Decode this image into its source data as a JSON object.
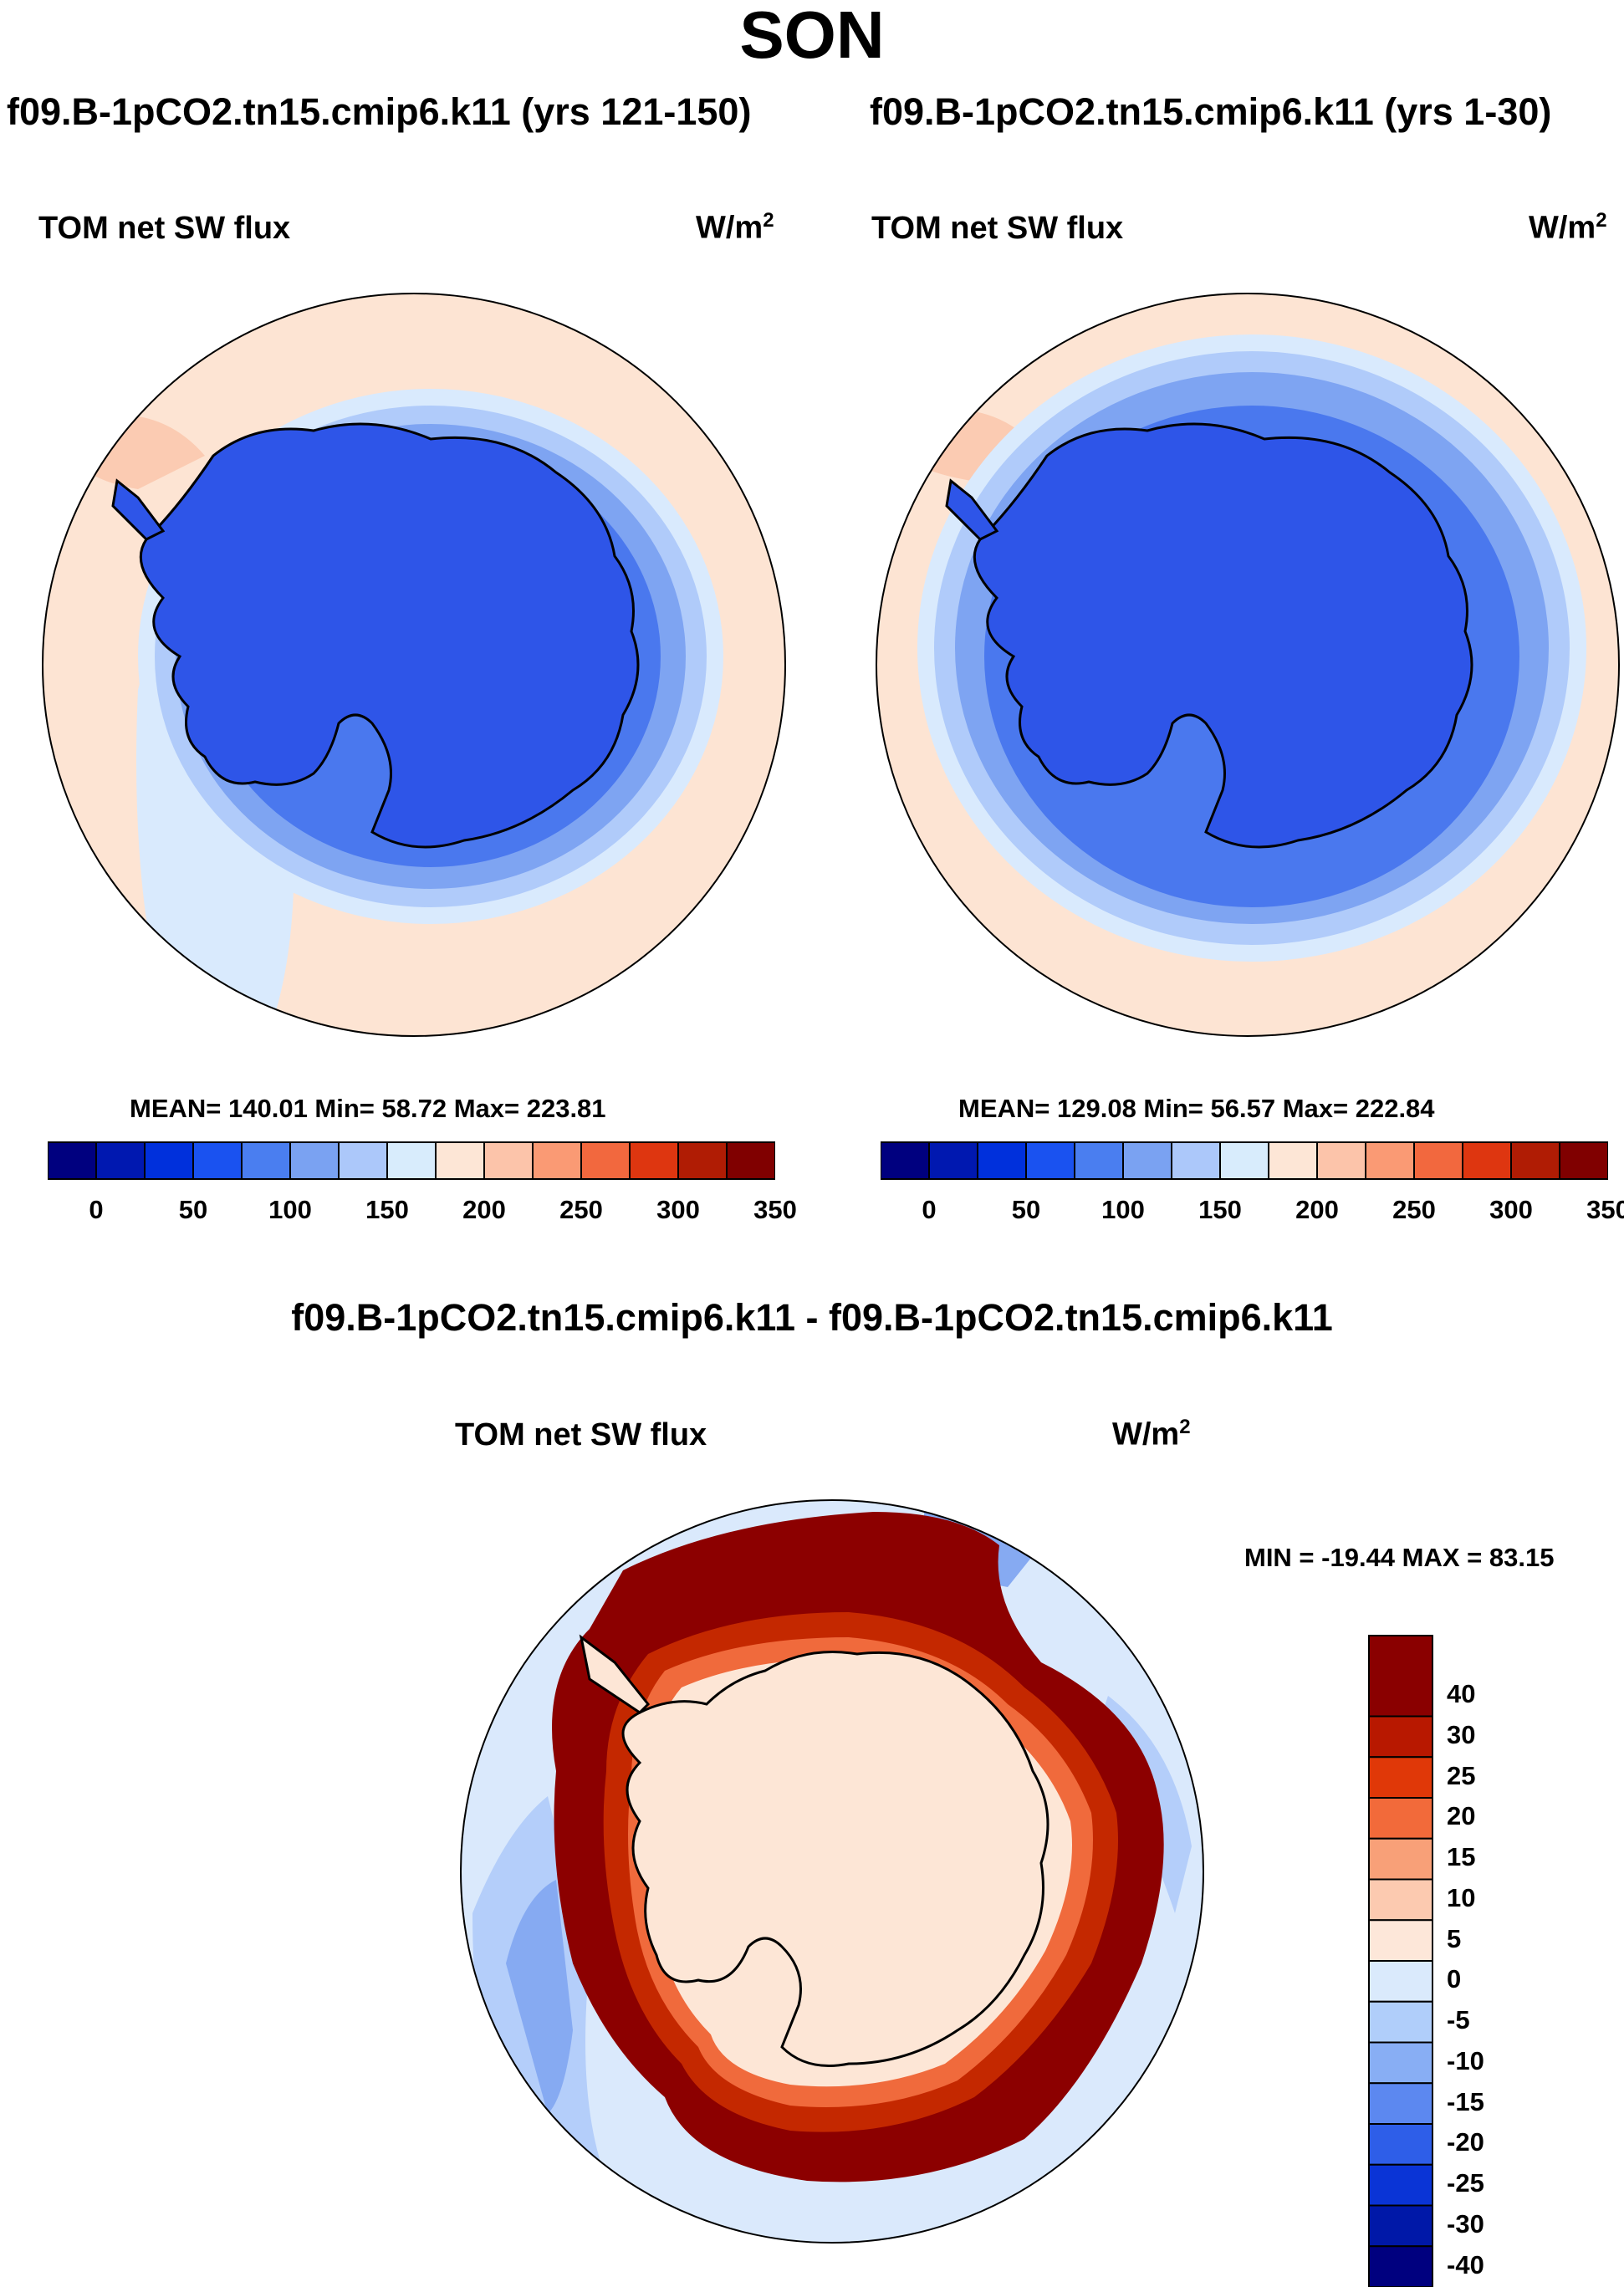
{
  "figure_title": "SON",
  "panels": [
    {
      "case_title": "f09.B-1pCO2.tn15.cmip6.k11 (yrs 121-150)",
      "variable": "TOM net SW flux",
      "units_base": "W/m",
      "units_exp": "2",
      "stats": "MEAN= 140.01  Min=  58.72  Max= 223.81"
    },
    {
      "case_title": "f09.B-1pCO2.tn15.cmip6.k11 (yrs 1-30)",
      "variable": "TOM net SW flux",
      "units_base": "W/m",
      "units_exp": "2",
      "stats": "MEAN= 129.08  Min=  56.57  Max= 222.84"
    }
  ],
  "diff_panel": {
    "case_title": "f09.B-1pCO2.tn15.cmip6.k11 - f09.B-1pCO2.tn15.cmip6.k11",
    "variable": "TOM net SW flux",
    "units_base": "W/m",
    "units_exp": "2",
    "stats": "MIN = -19.44 MAX =  83.15"
  },
  "abs_colorbar": {
    "colors": [
      "#00007f",
      "#0018b0",
      "#0030dc",
      "#1a52f0",
      "#4a7ef0",
      "#7aa2f2",
      "#acc8fa",
      "#d8ecfc",
      "#fde6d6",
      "#fcc4aa",
      "#fa9a74",
      "#f2683e",
      "#de3610",
      "#b01c04",
      "#800000"
    ],
    "tick_labels": [
      "0",
      "50",
      "100",
      "150",
      "200",
      "250",
      "300",
      "350"
    ]
  },
  "diff_colorbar": {
    "colors": [
      "#8a0000",
      "#b81800",
      "#e03808",
      "#f26a3a",
      "#f8a078",
      "#fccab0",
      "#fde7d9",
      "#daeafc",
      "#b0cefa",
      "#88aef4",
      "#5c88f0",
      "#2e5ee8",
      "#0a34d6",
      "#0018a8",
      "#00007f"
    ],
    "tick_labels": [
      "40",
      "30",
      "25",
      "20",
      "15",
      "10",
      "5",
      "0",
      "-5",
      "-10",
      "-15",
      "-20",
      "-25",
      "-30",
      "-40"
    ]
  },
  "map_colors": {
    "land": "#2e55e8",
    "land_inner": "#2a4fe6",
    "ring1": "#4a78ee",
    "ring2": "#7ea4f2",
    "ring3": "#b0cbfa",
    "ring4": "#d9eafd",
    "ocean": "#fde4d3",
    "warm_patch": "#fbcbb2",
    "diff_ocean": "#dae9fc",
    "diff_blue1": "#b4cefa",
    "diff_blue2": "#86aaf2",
    "diff_red_dark": "#8c0000",
    "diff_red_mid": "#c42800",
    "diff_red_light": "#f06a3c",
    "diff_land": "#fde6d6"
  }
}
